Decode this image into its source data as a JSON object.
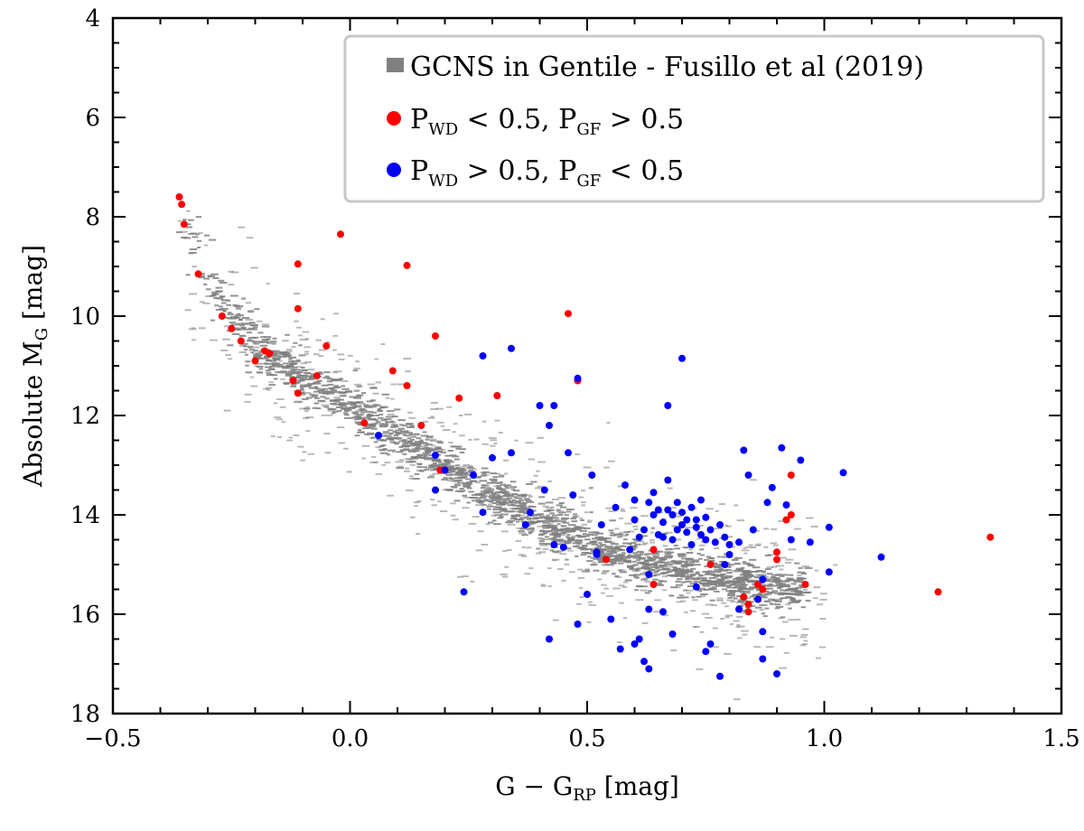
{
  "chart_data": {
    "type": "scatter",
    "xlabel": "G − G",
    "xlabel_sub": "RP",
    "xlabel_unit": " [mag]",
    "ylabel": "Absolute M",
    "ylabel_sub": "G",
    "ylabel_unit": " [mag]",
    "xlim": [
      -0.5,
      1.5
    ],
    "ylim": [
      18,
      4
    ],
    "y_inverted": true,
    "xticks": [
      -0.5,
      0.0,
      0.5,
      1.0,
      1.5
    ],
    "xtick_labels": [
      "−0.5",
      "0.0",
      "0.5",
      "1.0",
      "1.5"
    ],
    "yticks": [
      4,
      6,
      8,
      10,
      12,
      14,
      16,
      18
    ],
    "ytick_labels": [
      "4",
      "6",
      "8",
      "10",
      "12",
      "14",
      "16",
      "18"
    ],
    "legend_position": "top-right",
    "legend": [
      {
        "label": "GCNS in Gentile - Fusillo et al (2019)",
        "color": "#808080",
        "marker": "square"
      },
      {
        "label_parts": [
          "P",
          "WD",
          " < 0.5, P",
          "GF",
          " > 0.5"
        ],
        "color": "#ff0000",
        "marker": "circle"
      },
      {
        "label_parts": [
          "P",
          "WD",
          " > 0.5, P",
          "GF",
          " < 0.5"
        ],
        "color": "#0000ff",
        "marker": "circle"
      }
    ],
    "series": [
      {
        "name": "GCNS in Gentile - Fusillo et al (2019)",
        "color": "#808080",
        "kind": "density",
        "sequence": {
          "x": [
            -0.35,
            -0.3,
            -0.2,
            -0.1,
            0.0,
            0.1,
            0.2,
            0.3,
            0.4,
            0.5,
            0.6,
            0.7,
            0.8,
            0.9
          ],
          "y": [
            8.0,
            9.4,
            10.6,
            11.3,
            11.8,
            12.4,
            13.0,
            13.6,
            14.1,
            14.6,
            14.9,
            15.1,
            15.3,
            15.5
          ]
        }
      },
      {
        "name": "P_WD < 0.5, P_GF > 0.5",
        "color": "#ff0000",
        "points": [
          [
            -0.36,
            7.6
          ],
          [
            -0.355,
            7.75
          ],
          [
            -0.35,
            8.15
          ],
          [
            -0.32,
            9.15
          ],
          [
            -0.27,
            10.0
          ],
          [
            -0.25,
            10.25
          ],
          [
            -0.23,
            10.5
          ],
          [
            -0.2,
            10.9
          ],
          [
            -0.18,
            10.7
          ],
          [
            -0.17,
            10.75
          ],
          [
            -0.12,
            11.3
          ],
          [
            -0.11,
            11.55
          ],
          [
            -0.07,
            11.2
          ],
          [
            -0.05,
            10.6
          ],
          [
            -0.11,
            9.85
          ],
          [
            -0.11,
            8.95
          ],
          [
            -0.02,
            8.35
          ],
          [
            0.03,
            12.15
          ],
          [
            0.09,
            11.1
          ],
          [
            0.12,
            11.4
          ],
          [
            0.12,
            8.98
          ],
          [
            0.15,
            12.2
          ],
          [
            0.18,
            10.4
          ],
          [
            0.19,
            13.1
          ],
          [
            0.23,
            11.65
          ],
          [
            0.31,
            11.6
          ],
          [
            0.46,
            9.95
          ],
          [
            0.48,
            11.3
          ],
          [
            0.54,
            14.9
          ],
          [
            0.64,
            15.4
          ],
          [
            0.64,
            14.7
          ],
          [
            0.76,
            15.0
          ],
          [
            0.83,
            15.65
          ],
          [
            0.84,
            15.8
          ],
          [
            0.84,
            15.95
          ],
          [
            0.86,
            15.4
          ],
          [
            0.87,
            15.5
          ],
          [
            0.9,
            14.75
          ],
          [
            0.9,
            14.9
          ],
          [
            0.92,
            14.1
          ],
          [
            0.93,
            13.2
          ],
          [
            0.93,
            14.0
          ],
          [
            0.96,
            15.4
          ],
          [
            1.24,
            15.55
          ],
          [
            1.35,
            14.45
          ]
        ]
      },
      {
        "name": "P_WD > 0.5, P_GF < 0.5",
        "color": "#0000ff",
        "points": [
          [
            0.06,
            12.4
          ],
          [
            0.18,
            12.8
          ],
          [
            0.2,
            13.1
          ],
          [
            0.18,
            13.5
          ],
          [
            0.26,
            13.2
          ],
          [
            0.28,
            13.95
          ],
          [
            0.28,
            10.8
          ],
          [
            0.34,
            10.65
          ],
          [
            0.34,
            12.75
          ],
          [
            0.38,
            13.95
          ],
          [
            0.4,
            11.8
          ],
          [
            0.42,
            12.2
          ],
          [
            0.43,
            11.8
          ],
          [
            0.41,
            13.5
          ],
          [
            0.43,
            14.6
          ],
          [
            0.42,
            16.5
          ],
          [
            0.46,
            12.75
          ],
          [
            0.47,
            13.6
          ],
          [
            0.48,
            11.25
          ],
          [
            0.48,
            16.2
          ],
          [
            0.5,
            15.6
          ],
          [
            0.51,
            13.2
          ],
          [
            0.52,
            14.8
          ],
          [
            0.53,
            14.2
          ],
          [
            0.55,
            16.1
          ],
          [
            0.57,
            16.7
          ],
          [
            0.6,
            16.6
          ],
          [
            0.61,
            16.5
          ],
          [
            0.62,
            16.95
          ],
          [
            0.63,
            17.1
          ],
          [
            0.63,
            15.9
          ],
          [
            0.66,
            15.95
          ],
          [
            0.67,
            11.8
          ],
          [
            0.68,
            16.4
          ],
          [
            0.7,
            10.85
          ],
          [
            0.73,
            15.45
          ],
          [
            0.75,
            16.75
          ],
          [
            0.76,
            16.6
          ],
          [
            0.78,
            17.25
          ],
          [
            0.79,
            15.0
          ],
          [
            0.8,
            14.8
          ],
          [
            0.82,
            14.55
          ],
          [
            0.82,
            15.9
          ],
          [
            0.83,
            12.7
          ],
          [
            0.84,
            13.2
          ],
          [
            0.85,
            14.3
          ],
          [
            0.86,
            15.7
          ],
          [
            0.87,
            16.35
          ],
          [
            0.87,
            16.9
          ],
          [
            0.87,
            15.3
          ],
          [
            0.88,
            13.75
          ],
          [
            0.89,
            13.45
          ],
          [
            0.9,
            17.2
          ],
          [
            0.91,
            12.65
          ],
          [
            0.92,
            13.8
          ],
          [
            0.93,
            14.5
          ],
          [
            0.95,
            12.9
          ],
          [
            0.97,
            14.55
          ],
          [
            1.01,
            14.25
          ],
          [
            1.01,
            15.15
          ],
          [
            1.04,
            13.15
          ],
          [
            1.12,
            14.85
          ],
          [
            0.24,
            15.55
          ],
          [
            0.3,
            12.85
          ],
          [
            0.37,
            14.2
          ],
          [
            0.58,
            13.4
          ],
          [
            0.6,
            13.7
          ],
          [
            0.63,
            13.75
          ],
          [
            0.64,
            13.55
          ],
          [
            0.65,
            13.9
          ],
          [
            0.67,
            13.3
          ],
          [
            0.68,
            14.0
          ],
          [
            0.69,
            13.75
          ],
          [
            0.7,
            14.2
          ],
          [
            0.71,
            14.35
          ],
          [
            0.72,
            13.85
          ],
          [
            0.73,
            14.1
          ],
          [
            0.74,
            14.4
          ],
          [
            0.75,
            14.05
          ],
          [
            0.76,
            14.3
          ],
          [
            0.77,
            14.55
          ],
          [
            0.78,
            14.2
          ],
          [
            0.79,
            14.45
          ],
          [
            0.6,
            14.1
          ],
          [
            0.62,
            14.3
          ],
          [
            0.65,
            14.4
          ],
          [
            0.66,
            14.15
          ],
          [
            0.68,
            14.5
          ],
          [
            0.7,
            13.95
          ],
          [
            0.72,
            14.6
          ],
          [
            0.74,
            13.7
          ],
          [
            0.69,
            14.3
          ],
          [
            0.71,
            14.1
          ],
          [
            0.64,
            14.0
          ],
          [
            0.66,
            14.45
          ],
          [
            0.67,
            13.9
          ],
          [
            0.73,
            14.25
          ],
          [
            0.75,
            14.5
          ],
          [
            0.8,
            14.6
          ],
          [
            0.56,
            13.85
          ],
          [
            0.61,
            14.45
          ],
          [
            0.63,
            15.2
          ],
          [
            0.59,
            14.7
          ],
          [
            0.52,
            14.75
          ],
          [
            0.45,
            14.65
          ]
        ]
      }
    ]
  }
}
